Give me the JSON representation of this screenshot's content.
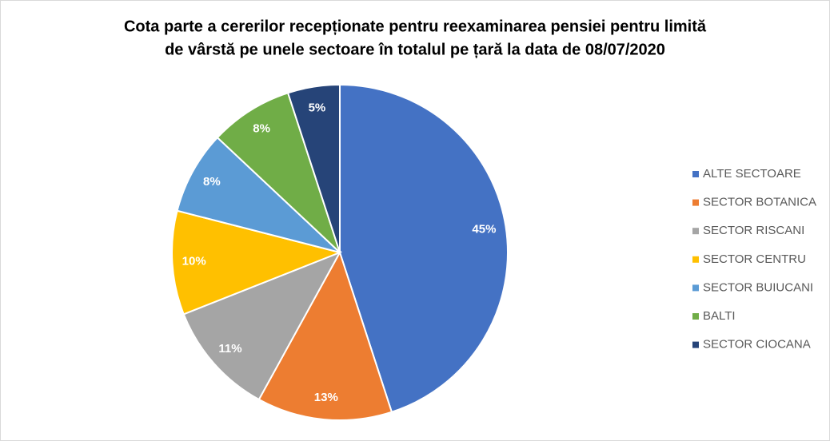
{
  "chart_data": {
    "type": "pie",
    "title": [
      "Cota parte a cererilor recepționate pentru reexaminarea  pensiei pentru limită",
      "de vârstă pe unele sectoare  în totalul pe țară la data de  08/07/2020"
    ],
    "categories": [
      "ALTE SECTOARE",
      "SECTOR BOTANICA",
      "SECTOR RISCANI",
      "SECTOR CENTRU",
      "SECTOR BUIUCANI",
      "BALTI",
      "SECTOR CIOCANA"
    ],
    "values": [
      45,
      13,
      11,
      10,
      8,
      8,
      5
    ],
    "value_labels": [
      "45%",
      "13%",
      "11%",
      "10%",
      "8%",
      "8%",
      "5%"
    ],
    "colors": [
      "#4472c4",
      "#ed7d31",
      "#a5a5a5",
      "#ffc000",
      "#5b9bd5",
      "#70ad47",
      "#264478"
    ],
    "legend": "right"
  }
}
